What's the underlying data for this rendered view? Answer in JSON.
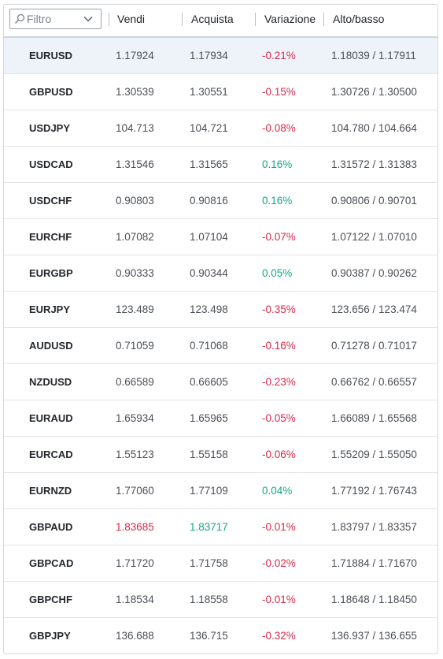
{
  "filter": {
    "placeholder": "Filtro"
  },
  "header": {
    "sell": "Vendi",
    "buy": "Acquista",
    "change": "Variazione",
    "highlow": "Alto/basso"
  },
  "colors": {
    "negative": "#d8284a",
    "positive": "#13a688",
    "selected_row": "#eef3fa"
  },
  "rows": [
    {
      "symbol": "EURUSD",
      "bid": "1.17924",
      "ask": "1.17934",
      "change": "-0.21%",
      "trend": "neg",
      "highlow": "1.18039 / 1.17911",
      "selected": true
    },
    {
      "symbol": "GBPUSD",
      "bid": "1.30539",
      "ask": "1.30551",
      "change": "-0.15%",
      "trend": "neg",
      "highlow": "1.30726 / 1.30500"
    },
    {
      "symbol": "USDJPY",
      "bid": "104.713",
      "ask": "104.721",
      "change": "-0.08%",
      "trend": "neg",
      "highlow": "104.780 / 104.664"
    },
    {
      "symbol": "USDCAD",
      "bid": "1.31546",
      "ask": "1.31565",
      "change": "0.16%",
      "trend": "pos",
      "highlow": "1.31572 / 1.31383"
    },
    {
      "symbol": "USDCHF",
      "bid": "0.90803",
      "ask": "0.90816",
      "change": "0.16%",
      "trend": "pos",
      "highlow": "0.90806 / 0.90701"
    },
    {
      "symbol": "EURCHF",
      "bid": "1.07082",
      "ask": "1.07104",
      "change": "-0.07%",
      "trend": "neg",
      "highlow": "1.07122 / 1.07010"
    },
    {
      "symbol": "EURGBP",
      "bid": "0.90333",
      "ask": "0.90344",
      "change": "0.05%",
      "trend": "pos",
      "highlow": "0.90387 / 0.90262"
    },
    {
      "symbol": "EURJPY",
      "bid": "123.489",
      "ask": "123.498",
      "change": "-0.35%",
      "trend": "neg",
      "highlow": "123.656 / 123.474"
    },
    {
      "symbol": "AUDUSD",
      "bid": "0.71059",
      "ask": "0.71068",
      "change": "-0.16%",
      "trend": "neg",
      "highlow": "0.71278 / 0.71017"
    },
    {
      "symbol": "NZDUSD",
      "bid": "0.66589",
      "ask": "0.66605",
      "change": "-0.23%",
      "trend": "neg",
      "highlow": "0.66762 / 0.66557"
    },
    {
      "symbol": "EURAUD",
      "bid": "1.65934",
      "ask": "1.65965",
      "change": "-0.05%",
      "trend": "neg",
      "highlow": "1.66089 / 1.65568"
    },
    {
      "symbol": "EURCAD",
      "bid": "1.55123",
      "ask": "1.55158",
      "change": "-0.06%",
      "trend": "neg",
      "highlow": "1.55209 / 1.55050"
    },
    {
      "symbol": "EURNZD",
      "bid": "1.77060",
      "ask": "1.77109",
      "change": "0.04%",
      "trend": "pos",
      "highlow": "1.77192 / 1.76743"
    },
    {
      "symbol": "GBPAUD",
      "bid": "1.83685",
      "ask": "1.83717",
      "change": "-0.01%",
      "trend": "neg",
      "highlow": "1.83797 / 1.83357",
      "bid_color": "neg",
      "ask_color": "pos"
    },
    {
      "symbol": "GBPCAD",
      "bid": "1.71720",
      "ask": "1.71758",
      "change": "-0.02%",
      "trend": "neg",
      "highlow": "1.71884 / 1.71670"
    },
    {
      "symbol": "GBPCHF",
      "bid": "1.18534",
      "ask": "1.18558",
      "change": "-0.01%",
      "trend": "neg",
      "highlow": "1.18648 / 1.18450"
    },
    {
      "symbol": "GBPJPY",
      "bid": "136.688",
      "ask": "136.715",
      "change": "-0.32%",
      "trend": "neg",
      "highlow": "136.937 / 136.655"
    }
  ]
}
